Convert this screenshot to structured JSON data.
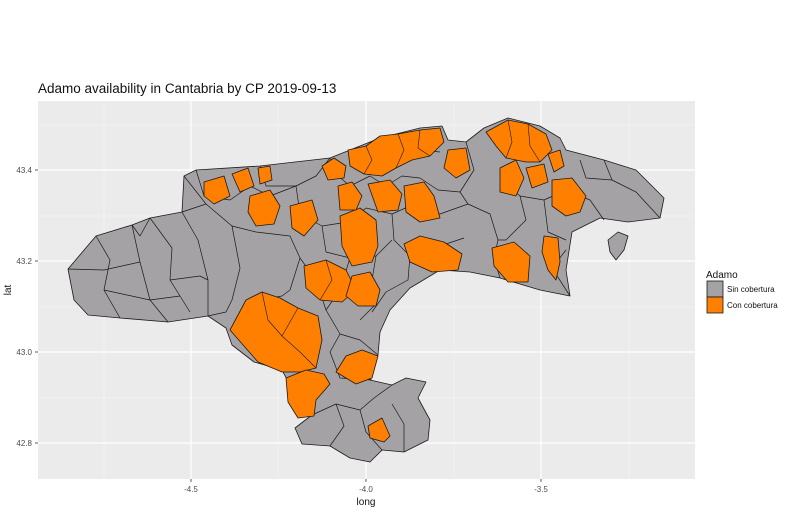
{
  "title": "Adamo availability in Cantabria by CP 2019-09-13",
  "axes": {
    "xlabel": "long",
    "ylabel": "lat",
    "x_ticks": [
      "-4.5",
      "-4.0",
      "-3.5"
    ],
    "y_ticks": [
      "43.4",
      "43.2",
      "43.0",
      "42.8"
    ]
  },
  "legend": {
    "title": "Adamo",
    "items": [
      {
        "label": "Sin cobertura",
        "color": "#a4a2a4"
      },
      {
        "label": "Con cobertura",
        "color": "#ff7f00"
      }
    ]
  },
  "colors": {
    "panel_background": "#ebebeb",
    "gridline": "#ffffff",
    "border": "#1a1a1a"
  }
}
